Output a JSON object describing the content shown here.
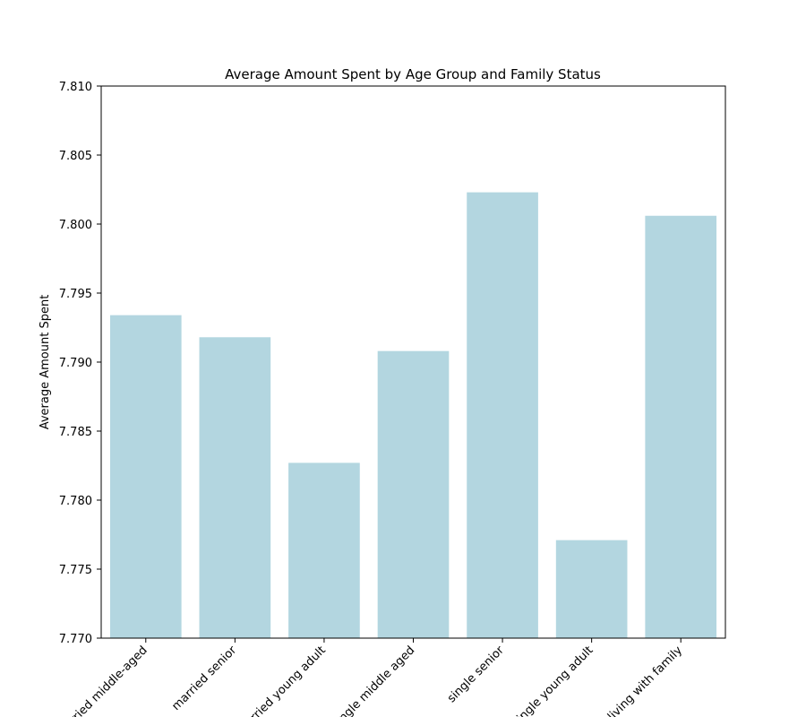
{
  "chart_data": {
    "type": "bar",
    "title": "Average Amount Spent by Age Group and Family Status",
    "y_label": "Average Amount Spent",
    "categories": [
      "married middle-aged",
      "married senior",
      "married young adult",
      "single middle aged",
      "single senior",
      "single young adult",
      "living with family"
    ],
    "values": [
      7.7934,
      7.7918,
      7.7827,
      7.7908,
      7.8023,
      7.7771,
      7.8006
    ],
    "color": "#b3d6e0",
    "ylim": [
      7.77,
      7.81
    ],
    "yticks": [
      {
        "value": 7.77,
        "label": "7.770"
      },
      7.775,
      {
        "value": 7.78,
        "label": "7.780"
      },
      7.785,
      {
        "value": 7.79,
        "label": "7.790"
      },
      7.795,
      {
        "value": 7.8,
        "label": "7.800"
      },
      7.805,
      {
        "value": 7.81,
        "label": "7.810"
      }
    ],
    "grid": false
  }
}
